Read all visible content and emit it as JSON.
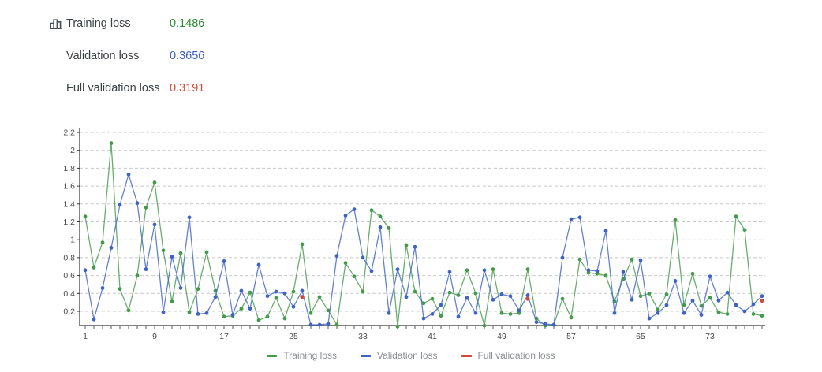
{
  "header": {
    "metrics": [
      {
        "id": "training",
        "label": "Training loss",
        "value": "0.1486",
        "color": "#2f8a35"
      },
      {
        "id": "validation",
        "label": "Validation loss",
        "value": "0.3656",
        "color": "#3a5dc0"
      },
      {
        "id": "full_validation",
        "label": "Full validation loss",
        "value": "0.3191",
        "color": "#d04a38"
      }
    ],
    "icon": "bar-chart-icon"
  },
  "chart_data": {
    "type": "line",
    "title": "",
    "xlabel": "",
    "ylabel": "",
    "xlim": [
      0.4,
      79.6
    ],
    "ylim": [
      0.04,
      2.25
    ],
    "grid": "dashed-horizontal",
    "legend_position": "bottom-center",
    "x": [
      1,
      2,
      3,
      4,
      5,
      6,
      7,
      8,
      9,
      10,
      11,
      12,
      13,
      14,
      15,
      16,
      17,
      18,
      19,
      20,
      21,
      22,
      23,
      24,
      25,
      26,
      27,
      28,
      29,
      30,
      31,
      32,
      33,
      34,
      35,
      36,
      37,
      38,
      39,
      40,
      41,
      42,
      43,
      44,
      45,
      46,
      47,
      48,
      49,
      50,
      51,
      52,
      53,
      54,
      55,
      56,
      57,
      58,
      59,
      60,
      61,
      62,
      63,
      64,
      65,
      66,
      67,
      68,
      69,
      70,
      71,
      72,
      73,
      74,
      75,
      76,
      77,
      78,
      79
    ],
    "x_tick_labels": [
      1,
      9,
      17,
      25,
      33,
      41,
      49,
      57,
      65,
      73
    ],
    "y_ticks": [
      0.2,
      0.4,
      0.6,
      0.8,
      1,
      1.2,
      1.4,
      1.6,
      1.8,
      2,
      2.2
    ],
    "series": [
      {
        "name": "Training loss",
        "color": "#449a4b",
        "values": [
          1.26,
          0.69,
          0.97,
          2.08,
          0.45,
          0.21,
          0.6,
          1.36,
          1.64,
          0.88,
          0.31,
          0.85,
          0.19,
          0.45,
          0.86,
          0.43,
          0.14,
          0.15,
          0.23,
          0.41,
          0.1,
          0.14,
          0.35,
          0.12,
          0.42,
          0.95,
          0.18,
          0.36,
          0.21,
          0.05,
          0.74,
          0.59,
          0.42,
          1.33,
          1.26,
          1.13,
          0.03,
          0.94,
          0.42,
          0.29,
          0.34,
          0.15,
          0.41,
          0.38,
          0.66,
          0.4,
          0.04,
          0.67,
          0.18,
          0.17,
          0.18,
          0.67,
          0.12,
          0.04,
          0.05,
          0.34,
          0.13,
          0.78,
          0.63,
          0.62,
          0.6,
          0.31,
          0.56,
          0.78,
          0.37,
          0.4,
          0.22,
          0.39,
          1.22,
          0.27,
          0.62,
          0.26,
          0.35,
          0.19,
          0.17,
          1.26,
          1.11,
          0.17,
          0.15
        ]
      },
      {
        "name": "Validation loss",
        "color": "#3e63c4",
        "values": [
          0.66,
          0.11,
          0.46,
          0.91,
          1.39,
          1.73,
          1.41,
          0.67,
          1.17,
          0.19,
          0.81,
          0.46,
          1.25,
          0.17,
          0.18,
          0.36,
          0.76,
          0.16,
          0.43,
          0.23,
          0.72,
          0.37,
          0.42,
          0.4,
          0.25,
          0.43,
          0.05,
          0.05,
          0.06,
          0.82,
          1.27,
          1.34,
          0.8,
          0.65,
          1.14,
          0.18,
          0.67,
          0.36,
          0.92,
          0.12,
          0.17,
          0.27,
          0.64,
          0.14,
          0.35,
          0.18,
          0.66,
          0.33,
          0.39,
          0.37,
          0.21,
          0.38,
          0.08,
          0.06,
          0.05,
          0.8,
          1.23,
          1.25,
          0.66,
          0.65,
          1.1,
          0.18,
          0.64,
          0.33,
          0.77,
          0.12,
          0.18,
          0.27,
          0.54,
          0.18,
          0.32,
          0.16,
          0.59,
          0.32,
          0.41,
          0.27,
          0.2,
          0.28,
          0.37
        ]
      }
    ],
    "scatter_series": [
      {
        "name": "Full validation loss",
        "color": "#d04a38",
        "points": [
          {
            "x": 26,
            "y": 0.36
          },
          {
            "x": 52,
            "y": 0.34
          },
          {
            "x": 79,
            "y": 0.32
          }
        ]
      }
    ],
    "legend": [
      {
        "label": "Training loss",
        "color": "#449a4b"
      },
      {
        "label": "Validation loss",
        "color": "#3e63c4"
      },
      {
        "label": "Full validation loss",
        "color": "#d04a38"
      }
    ]
  }
}
